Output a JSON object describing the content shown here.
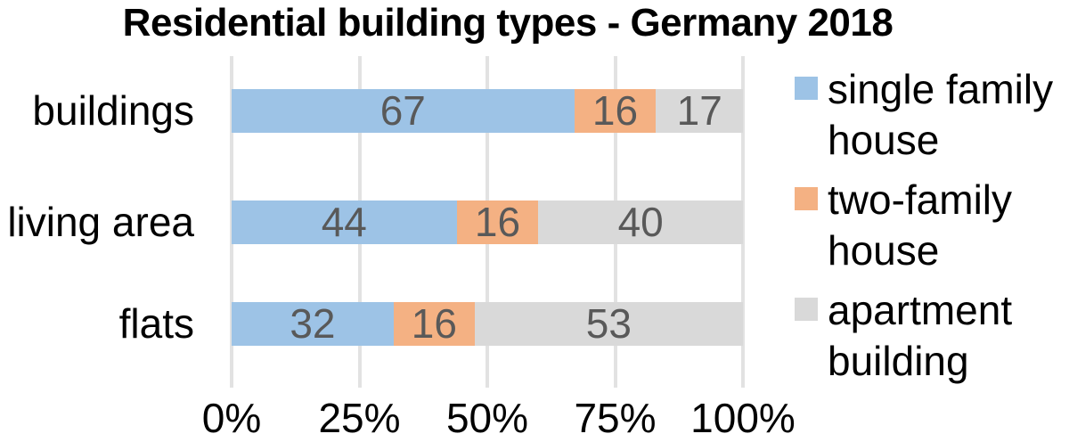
{
  "title": "Residential building types - Germany 2018",
  "chart_data": {
    "type": "bar",
    "orientation": "horizontal",
    "stacked": true,
    "title": "Residential building types - Germany 2018",
    "categories": [
      "buildings",
      "living area",
      "flats"
    ],
    "series": [
      {
        "name": "single family house",
        "color": "#9dc3e6",
        "values": [
          67,
          44,
          32
        ]
      },
      {
        "name": "two-family house",
        "color": "#f4b183",
        "values": [
          16,
          16,
          16
        ]
      },
      {
        "name": "apartment building",
        "color": "#d9d9d9",
        "values": [
          17,
          40,
          53
        ]
      }
    ],
    "x_axis": {
      "tick_labels": [
        "0%",
        "25%",
        "50%",
        "75%",
        "100%"
      ],
      "range": [
        0,
        100
      ],
      "unit": "%"
    },
    "grid": true,
    "legend_position": "right",
    "value_label_color": "#595959",
    "gridline_color": "#e2e2e2"
  }
}
